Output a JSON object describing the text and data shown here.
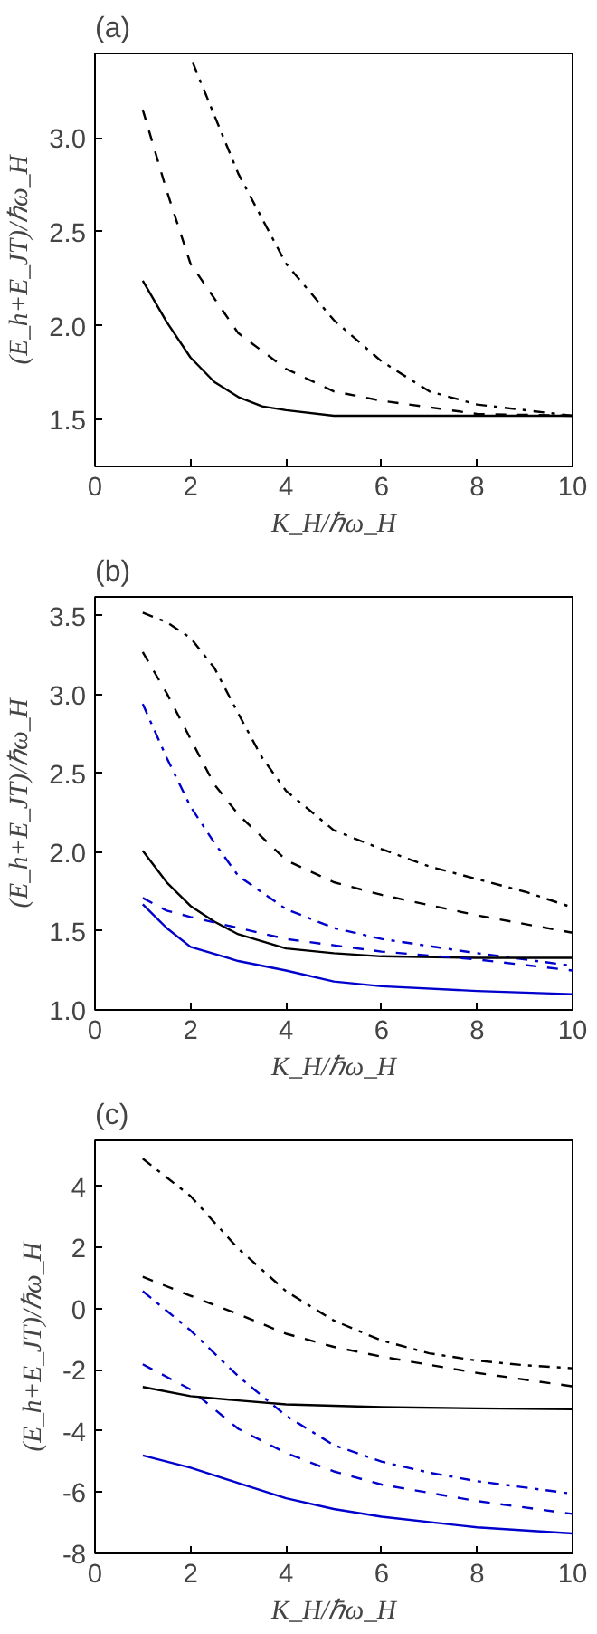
{
  "chart_data": [
    {
      "type": "line",
      "title": "(a)",
      "xlabel": "K_H/ℏω_H",
      "ylabel": "(E_h+E_JT)/ℏω_H",
      "xlim": [
        0,
        10
      ],
      "xticks": [
        0,
        2,
        4,
        6,
        8,
        10
      ],
      "ylim": [
        1.25,
        3.45
      ],
      "yticks": [
        1.5,
        {
          "value": 2,
          "label": "2.0"
        },
        2.5,
        {
          "value": 3,
          "label": "3.0"
        }
      ],
      "grid": false,
      "marker": "none",
      "series": [
        {
          "color": "#000000",
          "line_style": "solid",
          "x": [
            1,
            1.5,
            2,
            2.5,
            3,
            3.5,
            4,
            5,
            6,
            8,
            10
          ],
          "values": [
            2.24,
            2.02,
            1.83,
            1.7,
            1.62,
            1.57,
            1.55,
            1.52,
            1.52,
            1.52,
            1.52
          ]
        },
        {
          "color": "#000000",
          "line_style": "dashed",
          "x": [
            1,
            1.5,
            2,
            3,
            4,
            5,
            6,
            8,
            10
          ],
          "values": [
            3.15,
            2.72,
            2.33,
            1.96,
            1.77,
            1.65,
            1.6,
            1.53,
            1.52
          ]
        },
        {
          "color": "#000000",
          "line_style": "dashdot",
          "x": [
            2.05,
            2.5,
            3,
            4,
            5,
            6,
            7,
            8,
            10
          ],
          "values": [
            3.4,
            3.12,
            2.81,
            2.33,
            2.03,
            1.81,
            1.65,
            1.58,
            1.52
          ]
        }
      ]
    },
    {
      "type": "line",
      "title": "(b)",
      "xlabel": "K_H/ℏω_H",
      "ylabel": "(E_h+E_JT)/ℏω_H",
      "xlim": [
        0,
        10
      ],
      "xticks": [
        0,
        2,
        4,
        6,
        8,
        10
      ],
      "ylim": [
        1.0,
        3.62
      ],
      "yticks": [
        {
          "value": 1,
          "label": "1.0"
        },
        1.5,
        {
          "value": 2,
          "label": "2.0"
        },
        2.5,
        {
          "value": 3,
          "label": "3.0"
        },
        3.5
      ],
      "grid": false,
      "marker": "none",
      "series": [
        {
          "color": "#000000",
          "line_style": "dashdot",
          "x": [
            1,
            1.5,
            2,
            2.5,
            3,
            3.5,
            4,
            5,
            6,
            7,
            8,
            9,
            10
          ],
          "values": [
            3.52,
            3.46,
            3.36,
            3.17,
            2.88,
            2.6,
            2.39,
            2.14,
            2.02,
            1.91,
            1.83,
            1.75,
            1.65
          ]
        },
        {
          "color": "#000000",
          "line_style": "dashed",
          "x": [
            1,
            1.5,
            2,
            2.5,
            3,
            4,
            5,
            6,
            8,
            10
          ],
          "values": [
            3.27,
            3.01,
            2.72,
            2.43,
            2.24,
            1.95,
            1.81,
            1.73,
            1.6,
            1.49
          ]
        },
        {
          "color": "#0000cc",
          "line_style": "dashdot",
          "x": [
            1,
            1.5,
            2,
            2.5,
            3,
            4,
            5,
            6,
            8,
            10
          ],
          "values": [
            2.94,
            2.6,
            2.29,
            2.06,
            1.85,
            1.64,
            1.52,
            1.45,
            1.36,
            1.28
          ]
        },
        {
          "color": "#000000",
          "line_style": "solid",
          "x": [
            1,
            1.5,
            2,
            2.5,
            3,
            4,
            5,
            6,
            8,
            10
          ],
          "values": [
            2.01,
            1.81,
            1.66,
            1.56,
            1.48,
            1.39,
            1.36,
            1.34,
            1.33,
            1.33
          ]
        },
        {
          "color": "#0000cc",
          "line_style": "dashed",
          "x": [
            1,
            1.5,
            2,
            3,
            4,
            5,
            6,
            8,
            10
          ],
          "values": [
            1.71,
            1.63,
            1.59,
            1.52,
            1.45,
            1.41,
            1.37,
            1.32,
            1.25
          ]
        },
        {
          "color": "#0000cc",
          "line_style": "solid",
          "x": [
            1,
            1.5,
            2,
            3,
            4,
            5,
            6,
            8,
            10
          ],
          "values": [
            1.67,
            1.52,
            1.4,
            1.31,
            1.25,
            1.18,
            1.15,
            1.12,
            1.1
          ]
        }
      ]
    },
    {
      "type": "line",
      "title": "(c)",
      "xlabel": "K_H/ℏω_H",
      "ylabel": "(E_h+E_JT)/ℏω_H",
      "xlim": [
        0,
        10
      ],
      "xticks": [
        0,
        2,
        4,
        6,
        8,
        10
      ],
      "ylim": [
        -8,
        5.5
      ],
      "yticks": [
        -8,
        -6,
        -4,
        -2,
        0,
        2,
        4
      ],
      "grid": false,
      "marker": "none",
      "series": [
        {
          "color": "#000000",
          "line_style": "dashdot",
          "x": [
            1,
            2,
            3,
            4,
            5,
            6,
            7,
            8,
            9,
            10
          ],
          "values": [
            4.9,
            3.68,
            1.96,
            0.57,
            -0.39,
            -1.04,
            -1.46,
            -1.7,
            -1.85,
            -1.95
          ]
        },
        {
          "color": "#000000",
          "line_style": "dashed",
          "x": [
            1,
            2,
            3,
            4,
            5,
            6,
            8,
            10
          ],
          "values": [
            1.04,
            0.42,
            -0.18,
            -0.82,
            -1.25,
            -1.57,
            -2.1,
            -2.54
          ]
        },
        {
          "color": "#0000cc",
          "line_style": "dashdot",
          "x": [
            1,
            2,
            3,
            4,
            5,
            6,
            7,
            8,
            10
          ],
          "values": [
            0.57,
            -0.71,
            -2.21,
            -3.5,
            -4.46,
            -5.0,
            -5.36,
            -5.64,
            -6.05
          ]
        },
        {
          "color": "#0000cc",
          "line_style": "dashed",
          "x": [
            1,
            2,
            3,
            4,
            5,
            6,
            8,
            10
          ],
          "values": [
            -1.82,
            -2.64,
            -3.93,
            -4.72,
            -5.32,
            -5.75,
            -6.29,
            -6.71
          ]
        },
        {
          "color": "#000000",
          "line_style": "solid",
          "x": [
            1,
            2,
            3,
            4,
            6,
            8,
            10
          ],
          "values": [
            -2.56,
            -2.86,
            -3.0,
            -3.13,
            -3.22,
            -3.26,
            -3.29
          ]
        },
        {
          "color": "#0000cc",
          "line_style": "solid",
          "x": [
            1,
            2,
            3,
            4,
            5,
            6,
            8,
            10
          ],
          "values": [
            -4.8,
            -5.2,
            -5.7,
            -6.2,
            -6.55,
            -6.8,
            -7.15,
            -7.35
          ]
        }
      ]
    }
  ]
}
